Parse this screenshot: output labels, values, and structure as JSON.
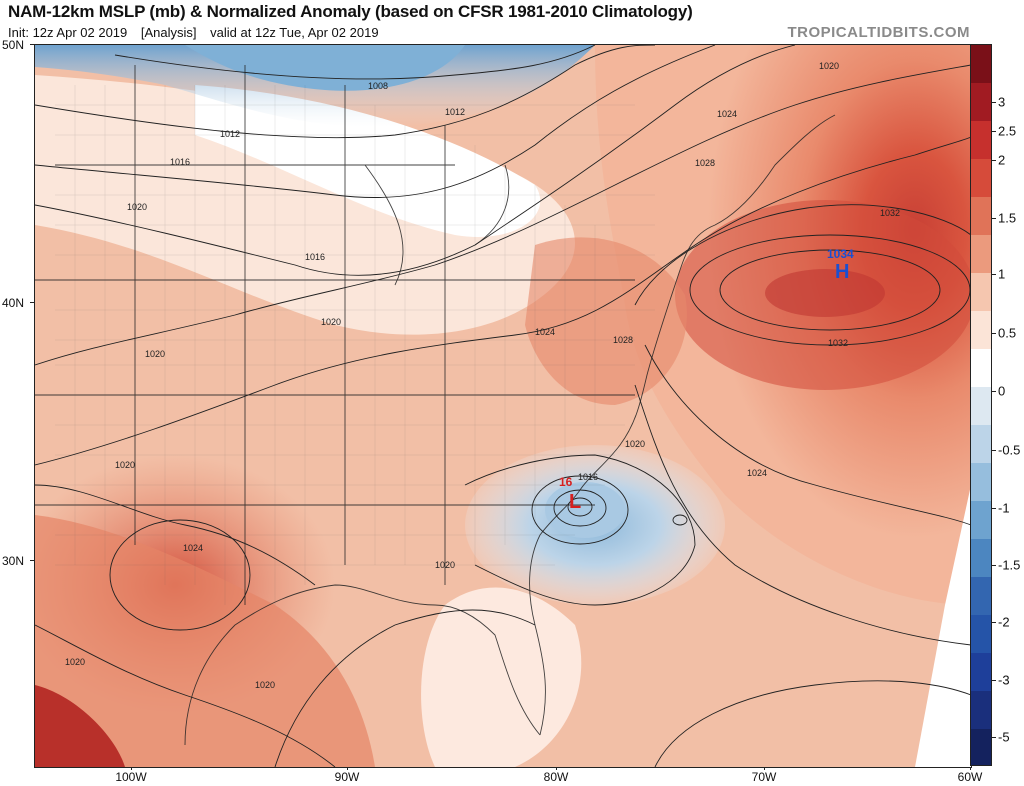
{
  "header": {
    "title": "NAM-12km MSLP (mb) & Normalized Anomaly (based on CFSR 1981-2010 Climatology)",
    "init": "Init: 12z Apr 02 2019",
    "analysis": "[Analysis]",
    "valid": "valid at 12z Tue, Apr 02 2019",
    "brand": "TROPICALTIDBITS.COM"
  },
  "axes": {
    "lat_labels": [
      "50N",
      "40N",
      "30N"
    ],
    "lon_labels": [
      "100W",
      "90W",
      "80W",
      "70W",
      "60W"
    ]
  },
  "colorbar": {
    "labels": [
      "3",
      "2.5",
      "2",
      "1.5",
      "1",
      "0.5",
      "0",
      "-0.5",
      "-1",
      "-1.5",
      "-2",
      "-3",
      "-5"
    ],
    "colors_top_to_bottom": [
      "#7a1018",
      "#a11b22",
      "#c6302d",
      "#d64b3a",
      "#e07358",
      "#eb9a7d",
      "#f5c6af",
      "#fbe4d7",
      "#ffffff",
      "#dde8f1",
      "#bcd4e8",
      "#96bedd",
      "#6ea3cf",
      "#4c86c0",
      "#3366b0",
      "#2554a8",
      "#1e3f9a",
      "#1a2f7c",
      "#14225e"
    ]
  },
  "systems": {
    "high": {
      "letter": "H",
      "value": "1034"
    },
    "low": {
      "letter": "L",
      "value": "16"
    }
  },
  "isobar_labels": [
    "1008",
    "1012",
    "1012",
    "1016",
    "1016",
    "1020",
    "1020",
    "1020",
    "1020",
    "1020",
    "1020",
    "1020",
    "1020",
    "1020",
    "1024",
    "1024",
    "1024",
    "1024",
    "1028",
    "1028",
    "1032",
    "1032",
    "1016"
  ]
}
